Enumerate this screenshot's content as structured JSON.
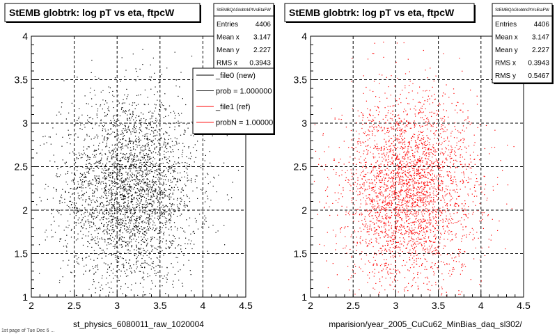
{
  "colors": {
    "reference": "#000000",
    "comparison": "#ff0000"
  },
  "footer_text": "1st page of Tue Dec  6 ...",
  "chart_data": [
    {
      "type": "scatter",
      "title": "StEMB globtrk: log pT vs eta, ftpcW",
      "xlabel": "st_physics_6080011_raw_1020004",
      "xlim": [
        2,
        4.5
      ],
      "ylim": [
        1,
        4
      ],
      "xticks": [
        "2",
        "2.5",
        "3",
        "3.5",
        "4",
        "4.5"
      ],
      "yticks": [
        "1",
        "1.5",
        "2",
        "2.5",
        "3",
        "3.5",
        "4"
      ],
      "grid": true,
      "point_color": "#000000",
      "distribution": {
        "entries": 4406,
        "mean_x": 3.147,
        "mean_y": 2.227,
        "rms_x": 0.3943,
        "rms_y": 0.5467
      },
      "stats": {
        "header": "StEMBQAGlobtrkPtVsEtaFW",
        "rows": [
          {
            "label": "Entries",
            "value": "4406"
          },
          {
            "label": "Mean x",
            "value": "3.147"
          },
          {
            "label": "Mean y",
            "value": "2.227"
          },
          {
            "label": "RMS x",
            "value": "0.3943"
          }
        ]
      },
      "legend": {
        "placement": "top-right",
        "entries": [
          {
            "label": "_file0 (new)",
            "color": "#000000"
          },
          {
            "label": "prob = 1.000000",
            "color": "#000000"
          },
          {
            "label": "_file1 (ref)",
            "color": "#ff0000"
          },
          {
            "label": "probN = 1.000000",
            "color": "#ff0000"
          }
        ]
      }
    },
    {
      "type": "scatter",
      "title": "StEMB globtrk: log pT vs eta, ftpcW",
      "xlabel": "mparision/year_2005_CuCu62_MinBias_daq_sl302/",
      "xlim": [
        2,
        4.5
      ],
      "ylim": [
        1,
        4
      ],
      "xticks": [
        "2",
        "2.5",
        "3",
        "3.5",
        "4",
        "4.5"
      ],
      "yticks": [
        "1",
        "1.5",
        "2",
        "2.5",
        "3",
        "3.5",
        "4"
      ],
      "grid": true,
      "point_color": "#ff0000",
      "distribution": {
        "entries": 4406,
        "mean_x": 3.147,
        "mean_y": 2.227,
        "rms_x": 0.3943,
        "rms_y": 0.5467
      },
      "stats": {
        "header": "StEMBQAGlobtrkPtVsEtaFW",
        "rows": [
          {
            "label": "Entries",
            "value": "4406"
          },
          {
            "label": "Mean x",
            "value": "3.147"
          },
          {
            "label": "Mean y",
            "value": "2.227"
          },
          {
            "label": "RMS x",
            "value": "0.3943"
          },
          {
            "label": "RMS y",
            "value": "0.5467"
          }
        ]
      }
    }
  ]
}
